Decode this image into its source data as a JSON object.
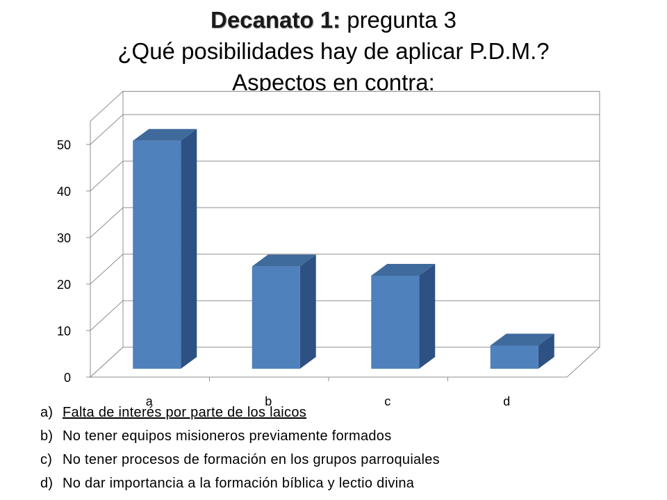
{
  "title": {
    "bold": "Decanato 1:",
    "rest": " pregunta 3",
    "line2": "¿Qué posibilidades hay de aplicar P.D.M.?",
    "line3": "Aspectos en contra:"
  },
  "chart_data": {
    "type": "bar",
    "categories": [
      "a",
      "b",
      "c",
      "d"
    ],
    "values": [
      49,
      22,
      20,
      5
    ],
    "yticks": [
      0,
      10,
      20,
      30,
      40,
      50
    ],
    "ylim": [
      0,
      55
    ],
    "grid": true,
    "colors": {
      "front": "#4f81bd",
      "side": "#2d5183",
      "top": "#3f6a9c"
    }
  },
  "legend": [
    {
      "key": "a)",
      "text": "Falta de interés por parte de los laicos"
    },
    {
      "key": "b)",
      "text": "No tener equipos misioneros previamente formados"
    },
    {
      "key": "c)",
      "text": "No tener procesos de formación en los grupos parroquiales"
    },
    {
      "key": "d)",
      "text": "No dar importancia a la formación bíblica y lectio divina"
    }
  ]
}
